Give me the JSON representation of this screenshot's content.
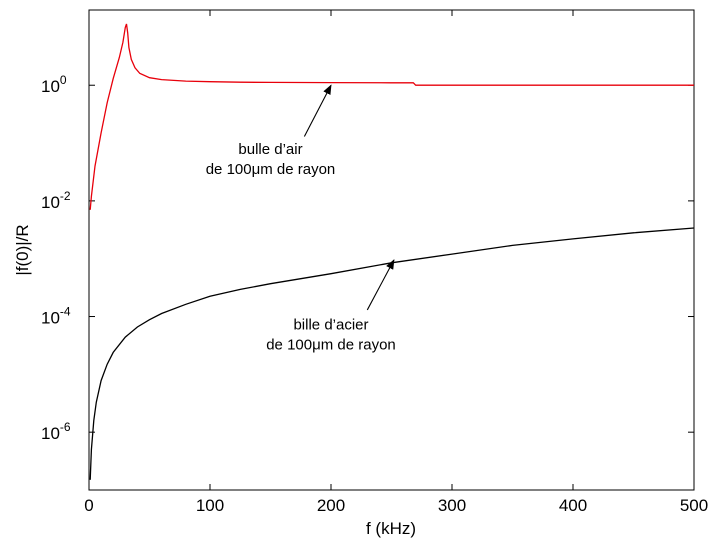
{
  "chart_data": {
    "type": "line",
    "xlabel": "f (kHz)",
    "ylabel": "|f(0)|/R",
    "xlim": [
      0,
      500
    ],
    "ylim": [
      1e-07,
      20
    ],
    "yscale": "log",
    "x_ticks": [
      0,
      100,
      200,
      300,
      400,
      500
    ],
    "x_tick_labels": [
      "0",
      "100",
      "200",
      "300",
      "400",
      "500"
    ],
    "y_ticks": [
      {
        "value": 1,
        "base": "10",
        "exp": "0"
      },
      {
        "value": 0.01,
        "base": "10",
        "exp": "-2"
      },
      {
        "value": 0.0001,
        "base": "10",
        "exp": "-4"
      },
      {
        "value": 1e-06,
        "base": "10",
        "exp": "-6"
      }
    ],
    "grid": false,
    "series": [
      {
        "color": "#e8000b",
        "x": [
          1,
          2,
          5,
          10,
          15,
          20,
          25,
          28,
          30,
          31,
          32,
          33,
          35,
          38,
          42,
          50,
          60,
          80,
          100,
          125,
          150,
          200,
          250,
          268,
          270,
          300,
          400,
          500
        ],
        "y": [
          0.007,
          0.012,
          0.04,
          0.15,
          0.5,
          1.3,
          3.0,
          5.5,
          10.0,
          11.5,
          8.0,
          4.5,
          2.8,
          2.0,
          1.6,
          1.35,
          1.25,
          1.18,
          1.15,
          1.13,
          1.12,
          1.11,
          1.1,
          1.1,
          1.0,
          1.0,
          1.0,
          1.0
        ]
      },
      {
        "color": "#000000",
        "x": [
          1,
          2,
          4,
          6,
          10,
          15,
          20,
          30,
          40,
          50,
          60,
          80,
          100,
          125,
          150,
          200,
          250,
          300,
          350,
          400,
          450,
          500
        ],
        "y": [
          1.5e-07,
          5e-07,
          1.6e-06,
          3.3e-06,
          7.8e-06,
          1.5e-05,
          2.4e-05,
          4.4e-05,
          6.6e-05,
          8.8e-05,
          0.000113,
          0.000163,
          0.000225,
          0.000295,
          0.00037,
          0.00055,
          0.00085,
          0.0012,
          0.0017,
          0.0022,
          0.0028,
          0.0034
        ]
      }
    ],
    "annotations": [
      {
        "lines": [
          "bulle d’air",
          "de 100μm de rayon"
        ],
        "arrow_to": {
          "x": 200,
          "y": 1.0
        },
        "arrow_from": {
          "x": 178,
          "y": 0.13
        },
        "text_at": {
          "x": 150,
          "y": 0.065
        }
      },
      {
        "lines": [
          "bille d’acier",
          "de 100μm de rayon"
        ],
        "arrow_to": {
          "x": 252,
          "y": 0.00095
        },
        "arrow_from": {
          "x": 230,
          "y": 0.00013
        },
        "text_at": {
          "x": 200,
          "y": 6e-05
        }
      }
    ]
  }
}
